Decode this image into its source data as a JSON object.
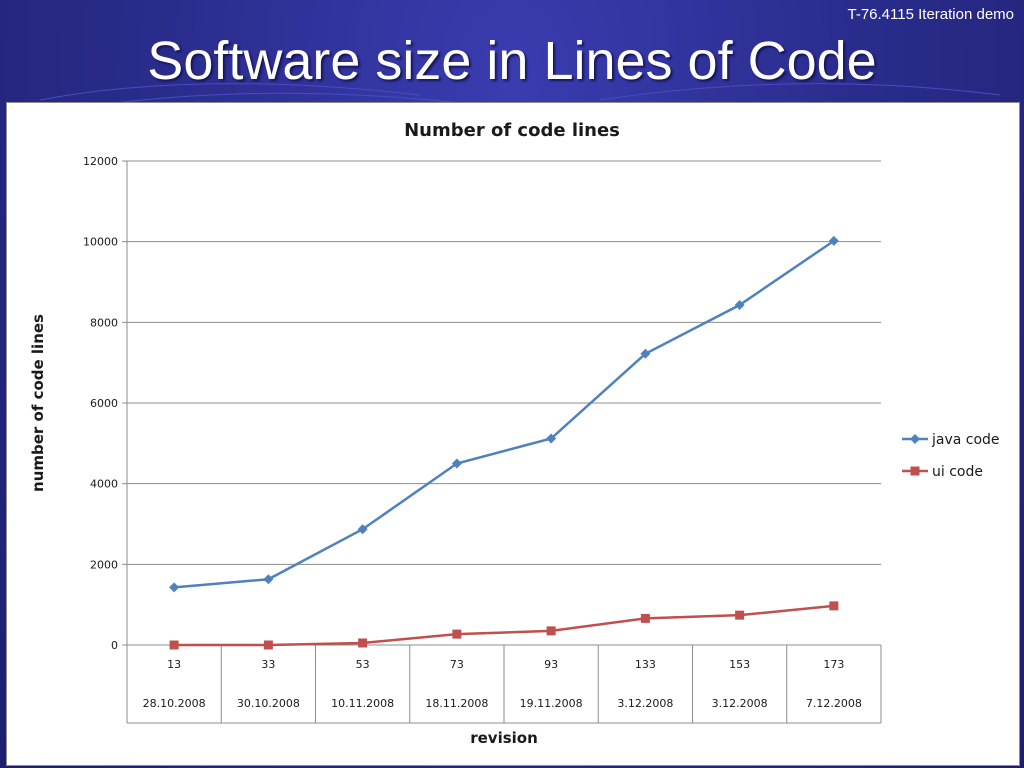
{
  "slide": {
    "corner_note": "T-76.4115 Iteration demo",
    "title": "Software size in Lines of Code"
  },
  "chart_data": {
    "type": "line",
    "title": "Number of code lines",
    "xlabel": "revision",
    "ylabel": "number of code lines",
    "categories": [
      {
        "revision": "13",
        "date": "28.10.2008"
      },
      {
        "revision": "33",
        "date": "30.10.2008"
      },
      {
        "revision": "53",
        "date": "10.11.2008"
      },
      {
        "revision": "73",
        "date": "18.11.2008"
      },
      {
        "revision": "93",
        "date": "19.11.2008"
      },
      {
        "revision": "133",
        "date": "3.12.2008"
      },
      {
        "revision": "153",
        "date": "3.12.2008"
      },
      {
        "revision": "173",
        "date": "7.12.2008"
      }
    ],
    "series": [
      {
        "name": "java code",
        "color": "#4f81bd",
        "marker": "diamond",
        "values": [
          1430,
          1630,
          2870,
          4500,
          5120,
          7220,
          8430,
          10020
        ]
      },
      {
        "name": "ui code",
        "color": "#c0504d",
        "marker": "square",
        "values": [
          0,
          0,
          50,
          270,
          350,
          660,
          740,
          970
        ]
      }
    ],
    "ylim": [
      0,
      12000
    ],
    "yticks": [
      0,
      2000,
      4000,
      6000,
      8000,
      10000,
      12000
    ],
    "grid": true,
    "legend_position": "right"
  }
}
